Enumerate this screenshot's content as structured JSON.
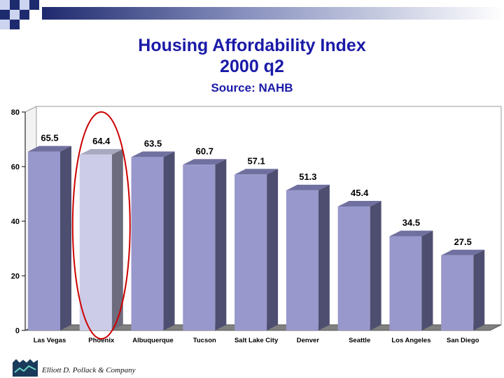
{
  "chart_data": {
    "type": "bar",
    "title": "Housing Affordability Index",
    "subtitle": "2000 q2",
    "source": "Source: NAHB",
    "categories": [
      "Las Vegas",
      "Phoenix",
      "Albuquerque",
      "Tucson",
      "Salt Lake City",
      "Denver",
      "Seattle",
      "Los Angeles",
      "San Diego"
    ],
    "values": [
      65.5,
      64.4,
      63.5,
      60.7,
      57.1,
      51.3,
      45.4,
      34.5,
      27.5
    ],
    "value_labels": [
      "65.5",
      "64.4",
      "63.5",
      "60.7",
      "57.1",
      "51.3",
      "45.4",
      "34.5",
      "27.5"
    ],
    "highlighted_category": "Phoenix",
    "y_ticks": [
      "0",
      "20",
      "40",
      "60",
      "80"
    ],
    "ylim": [
      0,
      80
    ],
    "xlabel": "",
    "ylabel": "",
    "grid": false
  },
  "footer": {
    "company": "Elliott D. Pollack & Company"
  },
  "colors": {
    "bar_front": "#9898cc",
    "bar_side": "#4e4e70",
    "bar_top": "#7070a0",
    "highlight_front": "#cccce8",
    "highlight_side": "#6c6c7e",
    "highlight_top": "#a8a8c0",
    "circle": "#cc0000",
    "title": "#1a1aa8",
    "plot_bg": "#ffffff",
    "wall_border": "#999999",
    "floor": "#808080"
  }
}
